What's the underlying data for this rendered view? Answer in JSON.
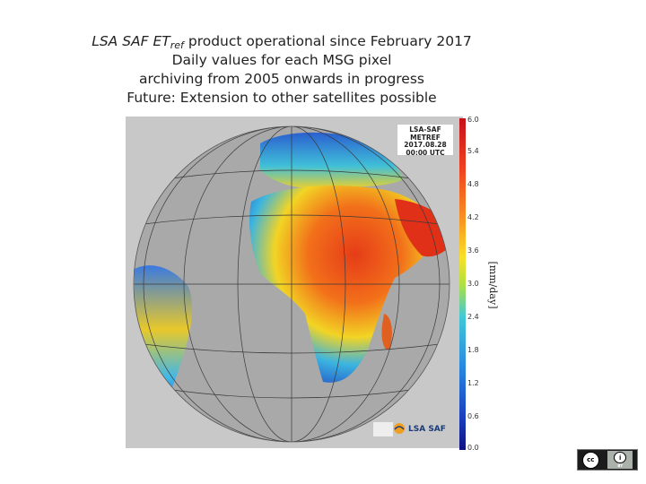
{
  "caption": {
    "line1_prefix": "LSA SAF ET",
    "line1_sub": "ref",
    "line1_rest": " product operational since February 2017",
    "line2": "Daily values for each MSG pixel",
    "line3": "archiving from 2005 onwards in progress",
    "line4": "Future: Extension to other satellites possible"
  },
  "map": {
    "stamp_line1": "LSA-SAF",
    "stamp_line2": "METREF",
    "stamp_line3": "2017.08.28",
    "stamp_line4": "00:00 UTC",
    "logo_text": "LSA SAF",
    "colorbar_ticks": [
      "6.0",
      "5.4",
      "4.8",
      "4.2",
      "3.6",
      "3.0",
      "2.4",
      "1.8",
      "1.2",
      "0.6",
      "0.0"
    ],
    "colorbar_min": 0.0,
    "colorbar_max": 6.0,
    "unit_label": "[mm/day]",
    "colors": {
      "ocean": "#a9a9a9",
      "high": "#d8181a",
      "mid": "#f2e020",
      "low": "#1a5fd0",
      "grid": "#3a3a3a"
    }
  },
  "license": {
    "cc_label": "cc",
    "by_symbol": "i",
    "by_text": "BY"
  }
}
